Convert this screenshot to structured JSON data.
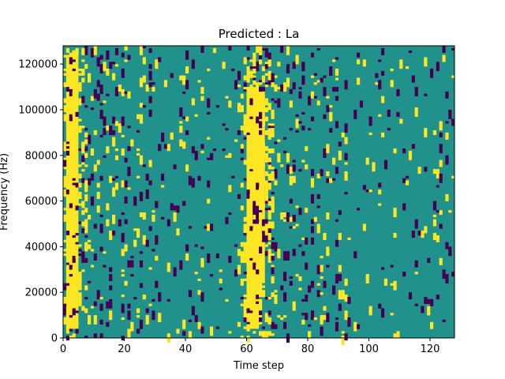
{
  "chart_data": {
    "type": "heatmap",
    "title": "Predicted : La",
    "xlabel": "Time step",
    "ylabel": "Frequency (Hz)",
    "xlim": [
      0,
      128
    ],
    "ylim": [
      0,
      128000
    ],
    "x_ticks": [
      0,
      20,
      40,
      60,
      80,
      100,
      120
    ],
    "y_ticks": [
      0,
      20000,
      40000,
      60000,
      80000,
      100000,
      120000
    ],
    "y_tick_labels": [
      "0",
      "20000",
      "40000",
      "60000",
      "80000",
      "100000",
      "120000"
    ],
    "grid": false,
    "colors": {
      "background": "#21918c",
      "high": "#fde725",
      "low": "#440154"
    },
    "columns": 128,
    "rows": 128,
    "bands": [
      {
        "value": "high",
        "x": [
          1,
          5
        ],
        "y": [
          4000,
          124000
        ]
      },
      {
        "value": "high",
        "x": [
          60,
          64
        ],
        "y": [
          4000,
          110000
        ]
      },
      {
        "value": "high",
        "x": [
          63,
          66
        ],
        "y": [
          24000,
          108000
        ]
      },
      {
        "value": "high",
        "x": [
          61,
          65
        ],
        "y": [
          30000,
          104000
        ]
      },
      {
        "value": "low",
        "x": [
          62,
          64
        ],
        "y": [
          50000,
          60000
        ]
      },
      {
        "value": "low",
        "x": [
          65,
          67
        ],
        "y": [
          42000,
          52000
        ]
      }
    ]
  }
}
